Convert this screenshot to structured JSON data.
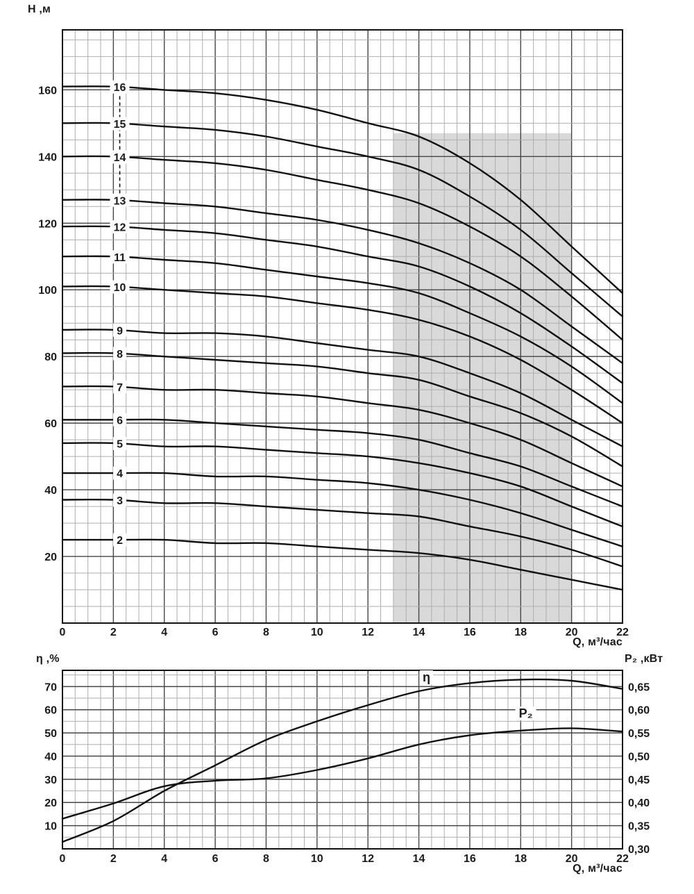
{
  "axes_titles": {
    "top_y": "H ,м",
    "top_x": "Q, м³/час",
    "bottom_left": "η ,%",
    "bottom_right": "P₂ ,кВт",
    "bottom_x": "Q, м³/час"
  },
  "colors": {
    "minor_grid": "#aeaeae",
    "major_grid": "#454545",
    "frame": "#111111",
    "curve": "#111111",
    "shading": "#d9d9d9",
    "text": "#1a1a1a",
    "background": "#ffffff"
  },
  "chart_data": [
    {
      "id": "head_curves",
      "type": "line",
      "title": "Pump head curves by number of stages",
      "xlabel": "Q, м³/час",
      "ylabel": "H ,м",
      "xlim": [
        0,
        22
      ],
      "ylim": [
        0,
        178
      ],
      "x_major_ticks": [
        0,
        2,
        4,
        6,
        8,
        10,
        12,
        14,
        16,
        18,
        20,
        22
      ],
      "x_minor_step": 0.5,
      "y_major_ticks": [
        20,
        40,
        60,
        80,
        100,
        120,
        140,
        160
      ],
      "y_minor_step": 5,
      "grid": true,
      "x": [
        0,
        2,
        4,
        6,
        8,
        10,
        12,
        14,
        16,
        18,
        20,
        22
      ],
      "series": [
        {
          "name": "16",
          "values": [
            161,
            161,
            160,
            159,
            157,
            154,
            150,
            146,
            138,
            127,
            113,
            99
          ]
        },
        {
          "name": "15",
          "values": [
            150,
            150,
            149,
            148,
            146,
            143,
            140,
            136,
            128,
            118,
            105,
            92
          ]
        },
        {
          "name": "14",
          "values": [
            140,
            140,
            139,
            138,
            136,
            133,
            130,
            126,
            119,
            110,
            98,
            85
          ]
        },
        {
          "name": "13",
          "values": [
            127,
            127,
            126,
            125,
            123,
            121,
            118,
            114,
            108,
            100,
            89,
            78
          ]
        },
        {
          "name": "12",
          "values": [
            119,
            119,
            118,
            117,
            115,
            113,
            110,
            107,
            101,
            93,
            83,
            72
          ]
        },
        {
          "name": "11",
          "values": [
            110,
            110,
            109,
            108,
            106,
            104,
            102,
            99,
            93,
            86,
            77,
            66
          ]
        },
        {
          "name": "10",
          "values": [
            101,
            101,
            100,
            99,
            98,
            96,
            94,
            91,
            86,
            79,
            70,
            60
          ]
        },
        {
          "name": "9",
          "values": [
            88,
            88,
            87,
            87,
            86,
            84,
            82,
            80,
            75,
            69,
            61,
            53
          ]
        },
        {
          "name": "8",
          "values": [
            81,
            81,
            80,
            79,
            78,
            77,
            75,
            73,
            68,
            63,
            56,
            47
          ]
        },
        {
          "name": "7",
          "values": [
            71,
            71,
            70,
            70,
            69,
            68,
            66,
            64,
            60,
            55,
            48,
            41
          ]
        },
        {
          "name": "6",
          "values": [
            61,
            61,
            61,
            60,
            59,
            58,
            57,
            55,
            51,
            47,
            41,
            35
          ]
        },
        {
          "name": "5",
          "values": [
            54,
            54,
            53,
            53,
            52,
            51,
            50,
            48,
            45,
            41,
            35,
            29
          ]
        },
        {
          "name": "4",
          "values": [
            45,
            45,
            45,
            44,
            44,
            43,
            42,
            40,
            37,
            33,
            28,
            23
          ]
        },
        {
          "name": "3",
          "values": [
            37,
            37,
            36,
            36,
            35,
            34,
            33,
            32,
            29,
            26,
            22,
            17
          ]
        },
        {
          "name": "2",
          "values": [
            25,
            25,
            25,
            24,
            24,
            23,
            22,
            21,
            19,
            16,
            13,
            10
          ]
        }
      ],
      "series_label_x": 2.25,
      "dashed_connector": {
        "x": 2.25,
        "y_from": 160,
        "y_to": 128
      },
      "shaded_region": {
        "x_from": 13,
        "x_to": 20,
        "y_from": 0,
        "y_to": 147,
        "color": "#d9d9d9"
      }
    },
    {
      "id": "efficiency_and_power",
      "type": "line",
      "title": "Efficiency and shaft power",
      "xlabel": "Q, м³/час",
      "xlim": [
        0,
        22
      ],
      "x_major_ticks": [
        0,
        2,
        4,
        6,
        8,
        10,
        12,
        14,
        16,
        18,
        20,
        22
      ],
      "x_minor_step": 0.5,
      "grid": true,
      "left": {
        "label": "η ,%",
        "lim": [
          0,
          77
        ],
        "ticks": [
          10,
          20,
          30,
          40,
          50,
          60,
          70
        ],
        "minor_step": 5
      },
      "right": {
        "label": "P₂ ,кВт",
        "lim": [
          0.3,
          0.685
        ],
        "ticks": [
          {
            "v": 0.65,
            "t": "0,65"
          },
          {
            "v": 0.6,
            "t": "0,60"
          },
          {
            "v": 0.55,
            "t": "0,55"
          },
          {
            "v": 0.5,
            "t": "0,50"
          },
          {
            "v": 0.45,
            "t": "0,45"
          },
          {
            "v": 0.4,
            "t": "0,40"
          },
          {
            "v": 0.35,
            "t": "0,35"
          },
          {
            "v": 0.3,
            "t": "0,30"
          }
        ]
      },
      "x": [
        0,
        2,
        4,
        6,
        8,
        10,
        12,
        14,
        16,
        18,
        20,
        22
      ],
      "series": [
        {
          "name": "η",
          "axis": "left",
          "values": [
            3,
            12,
            25,
            36,
            47,
            55,
            62,
            68,
            71.5,
            73,
            72.5,
            69
          ],
          "label_pos": {
            "x": 14.3,
            "y": 74
          }
        },
        {
          "name": "P₂",
          "axis": "right",
          "values": [
            0.365,
            0.398,
            0.435,
            0.447,
            0.452,
            0.47,
            0.495,
            0.525,
            0.545,
            0.555,
            0.56,
            0.553
          ],
          "label_pos": {
            "x": 18.2,
            "y": 0.592
          }
        }
      ]
    }
  ]
}
